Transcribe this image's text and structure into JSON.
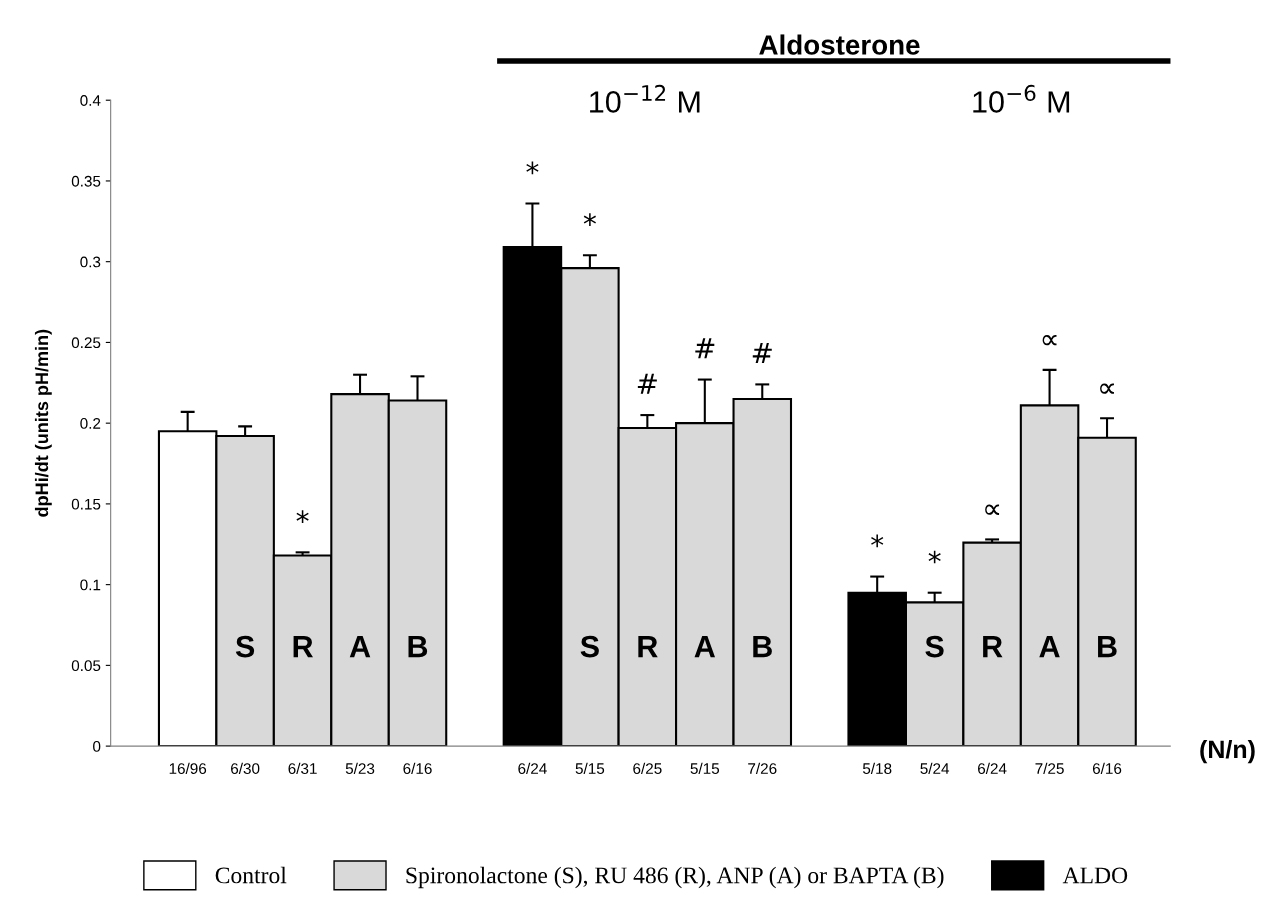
{
  "chart_data": {
    "type": "bar",
    "ylabel": "dpHi/dt (units pH/min)",
    "categories": [
      "16/96",
      "6/30",
      "6/31",
      "5/23",
      "6/16",
      null,
      "6/24",
      "5/15",
      "6/25",
      "5/15",
      "7/26",
      null,
      "5/18",
      "5/24",
      "6/24",
      "7/25",
      "6/16"
    ],
    "series": [
      {
        "name": "Control",
        "color": "#ffffff",
        "values": [
          0.195,
          null,
          null,
          null,
          null,
          null,
          null,
          null,
          null,
          null,
          null,
          null,
          null,
          null,
          null,
          null,
          null
        ],
        "errors": [
          0.012,
          null,
          null,
          null,
          null,
          null,
          null,
          null,
          null,
          null,
          null,
          null,
          null,
          null,
          null,
          null,
          null
        ]
      },
      {
        "name": "Spironolactone (S), RU 486 (R), ANP (A) or BAPTA (B)",
        "color": "#d9d9d9",
        "values": [
          null,
          0.192,
          0.118,
          0.218,
          0.214,
          null,
          null,
          0.296,
          0.197,
          0.2,
          0.215,
          null,
          null,
          0.089,
          0.126,
          0.211,
          0.191
        ],
        "errors": [
          null,
          0.006,
          0.002,
          0.012,
          0.015,
          null,
          null,
          0.008,
          0.008,
          0.027,
          0.009,
          null,
          null,
          0.006,
          0.002,
          0.022,
          0.012
        ]
      },
      {
        "name": "ALDO",
        "color": "#000000",
        "values": [
          null,
          null,
          null,
          null,
          null,
          null,
          0.309,
          null,
          null,
          null,
          null,
          null,
          0.095,
          null,
          null,
          null,
          null
        ],
        "errors": [
          null,
          null,
          null,
          null,
          null,
          null,
          0.027,
          null,
          null,
          null,
          null,
          null,
          0.01,
          null,
          null,
          null,
          null
        ]
      }
    ],
    "ylim": [
      0,
      0.4
    ],
    "yticks": [
      0,
      0.05,
      0.1,
      0.15,
      0.2,
      0.25,
      0.3,
      0.35,
      0.4
    ],
    "grid": false,
    "legend": "bottom",
    "annotations": [
      "S",
      "*",
      "R",
      "A",
      "B",
      "*",
      "*",
      "S",
      "#",
      "R",
      "#",
      "A",
      "#",
      "B",
      "*",
      "*",
      "S",
      "∝",
      "R",
      "∝",
      "A",
      "∝",
      "B",
      "Aldosterone",
      "10$^{−12}$ M",
      "10$^{−6}$ M",
      "(N/n)"
    ]
  }
}
